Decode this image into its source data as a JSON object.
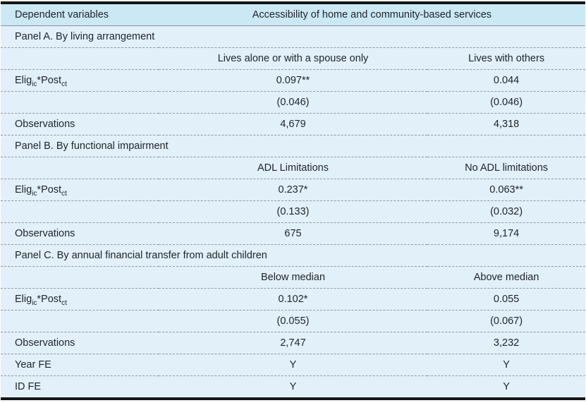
{
  "colors": {
    "header_bg": "#cbe8f5",
    "body_bg": "#e2f0fa",
    "border_dark": "#161616",
    "rule_solid": "#8a9299",
    "rule_dashed": "#8f989e",
    "text": "#1f2328"
  },
  "table": {
    "header": {
      "label_column_title": "Dependent variables",
      "dependent_variable_title": "Accessibility of home and community-based services"
    },
    "panels": [
      {
        "title": "Panel A. By living arrangement",
        "column_headers": [
          "Lives alone or with a spouse only",
          "Lives with others"
        ],
        "rows": [
          {
            "label_parts": [
              {
                "text": "Elig"
              },
              {
                "text": "ic",
                "sub": true
              },
              {
                "text": "*Post"
              },
              {
                "text": "ct",
                "sub": true
              }
            ],
            "values": [
              "0.097**",
              "0.044"
            ]
          },
          {
            "label": "",
            "values": [
              "(0.046)",
              "(0.046)"
            ]
          },
          {
            "label": "Observations",
            "values": [
              "4,679",
              "4,318"
            ]
          }
        ]
      },
      {
        "title": "Panel B. By functional impairment",
        "column_headers": [
          "ADL Limitations",
          "No ADL limitations"
        ],
        "rows": [
          {
            "label_parts": [
              {
                "text": "Elig"
              },
              {
                "text": "ic",
                "sub": true
              },
              {
                "text": "*Post"
              },
              {
                "text": "ct",
                "sub": true
              }
            ],
            "values": [
              "0.237*",
              "0.063**"
            ]
          },
          {
            "label": "",
            "values": [
              "(0.133)",
              "(0.032)"
            ]
          },
          {
            "label": "Observations",
            "values": [
              "675",
              "9,174"
            ]
          }
        ]
      },
      {
        "title": "Panel C. By annual financial transfer from adult children",
        "column_headers": [
          "Below median",
          "Above median"
        ],
        "rows": [
          {
            "label_parts": [
              {
                "text": "Elig"
              },
              {
                "text": "ic",
                "sub": true
              },
              {
                "text": "*Post"
              },
              {
                "text": "ct",
                "sub": true
              }
            ],
            "values": [
              "0.102*",
              "0.055"
            ]
          },
          {
            "label": "",
            "values": [
              "(0.055)",
              "(0.067)"
            ]
          },
          {
            "label": "Observations",
            "values": [
              "2,747",
              "3,232"
            ]
          }
        ]
      }
    ],
    "fixed_effects": [
      {
        "label": "Year FE",
        "values": [
          "Y",
          "Y"
        ]
      },
      {
        "label": "ID FE",
        "values": [
          "Y",
          "Y"
        ]
      }
    ]
  }
}
